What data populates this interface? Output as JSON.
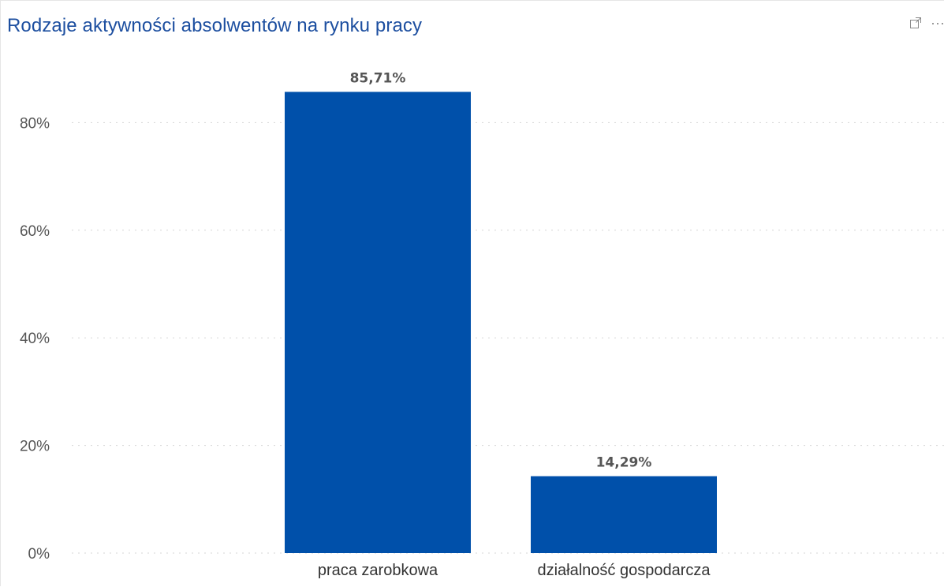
{
  "visual": {
    "title": "Rodzaje aktywności absolwentów na rynku pracy",
    "focus_icon": "focus-mode-icon",
    "more_icon": "more-options-icon",
    "more_label": "···"
  },
  "chart_data": {
    "type": "bar",
    "title": "Rodzaje aktywności absolwentów na rynku pracy",
    "categories": [
      "praca zarobkowa",
      "działalność gospodarcza"
    ],
    "values": [
      85.71,
      14.29
    ],
    "data_labels": [
      "85,71%",
      "14,29%"
    ],
    "xlabel": "",
    "ylabel": "",
    "ylim": [
      0,
      90
    ],
    "yticks": [
      0,
      20,
      40,
      60,
      80
    ],
    "ytick_labels": [
      "0%",
      "20%",
      "40%",
      "60%",
      "80%"
    ],
    "grid": true,
    "legend": "none",
    "bar_color": "#0050aa",
    "grid_color": "#d6d6d6"
  }
}
